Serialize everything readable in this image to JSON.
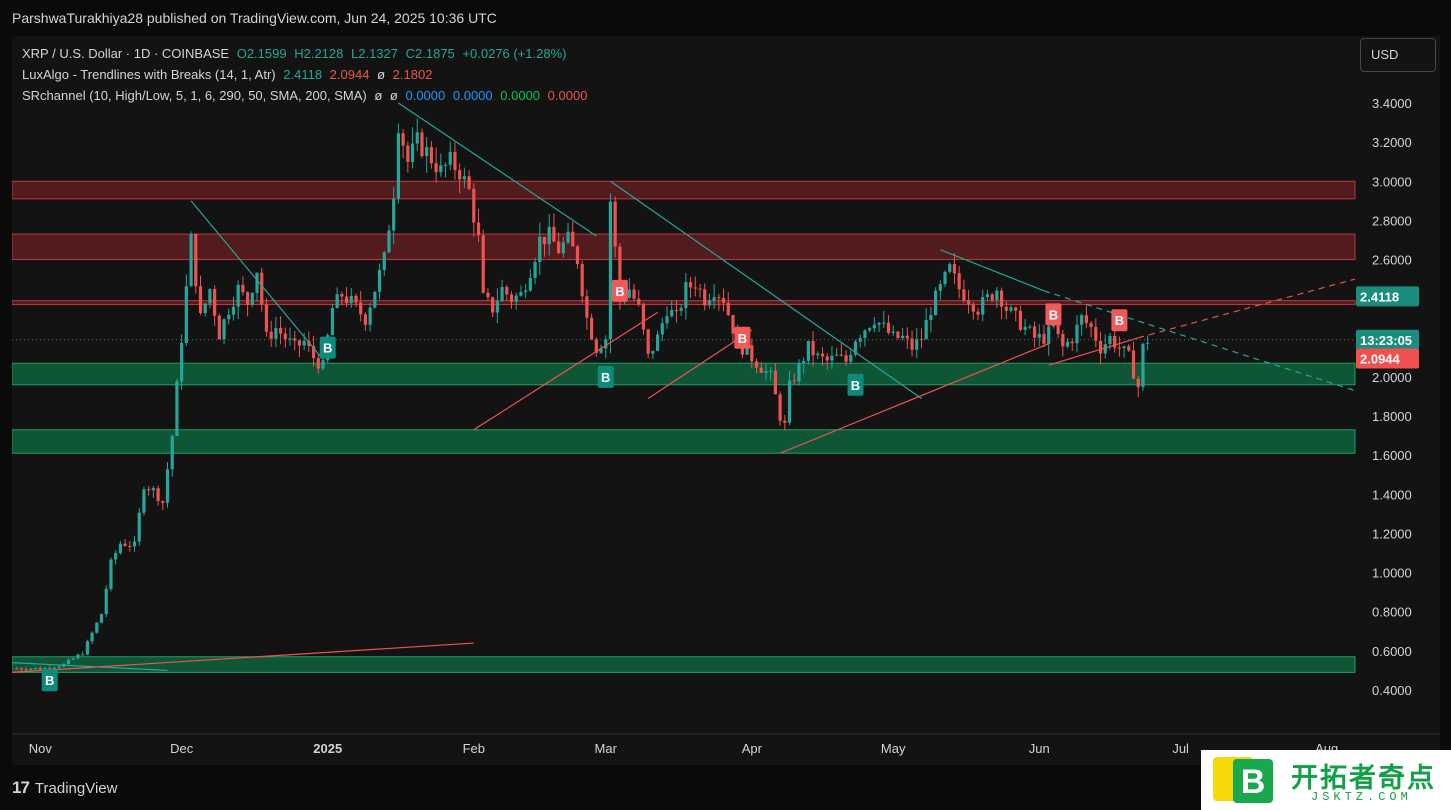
{
  "attribution": "ParshwaTurakhiya28 published on TradingView.com, Jun 24, 2025 10:36 UTC",
  "legend": {
    "symbol": "XRP / U.S. Dollar · 1D · COINBASE",
    "ohlc": {
      "open": "O2.1599",
      "high": "H2.2128",
      "low": "L2.1327",
      "close": "C2.1875",
      "change": "+0.0276 (+1.28%)"
    },
    "luxalgo": {
      "name": "LuxAlgo - Trendlines with Breaks (14, 1, Atr)",
      "v1": "2.4118",
      "v2": "2.0944",
      "v3": "ø",
      "v4": "2.1802"
    },
    "srchannel": {
      "name": "SRchannel (10, High/Low, 5, 1, 6, 290, 50, SMA, 200, SMA)",
      "v1": "ø",
      "v2": "ø",
      "v3": "0.0000",
      "v4": "0.0000",
      "v5": "0.0000",
      "v6": "0.0000"
    }
  },
  "currency": "USD",
  "footer": {
    "brand": "TradingView",
    "logo_glyph": "17"
  },
  "watermark": {
    "text": "开拓者奇点",
    "sub": "JSKTZ.COM",
    "logo_letter": "B"
  },
  "colors": {
    "bull": "#26a69a",
    "bear": "#ef5350",
    "resistance": "#5e1f22",
    "support": "#0f5e3c",
    "trendline_down": "#26a69a",
    "trendline_up": "#ef5350",
    "bg": "#131313"
  },
  "chart_data": {
    "type": "candlestick",
    "title": "XRP / U.S. Dollar · 1D · COINBASE",
    "ylim": [
      0.3,
      3.5
    ],
    "y_ticks": [
      "3.4000",
      "3.2000",
      "3.0000",
      "2.8000",
      "2.6000",
      "2.4000",
      "2.2000",
      "2.0000",
      "1.8000",
      "1.6000",
      "1.4000",
      "1.2000",
      "1.0000",
      "0.8000",
      "0.6000",
      "0.4000"
    ],
    "x_ticks": [
      {
        "label": "Nov",
        "date": "2024-11-01"
      },
      {
        "label": "Dec",
        "date": "2024-12-01"
      },
      {
        "label": "2025",
        "date": "2025-01-01"
      },
      {
        "label": "Feb",
        "date": "2025-02-01"
      },
      {
        "label": "Mar",
        "date": "2025-03-01"
      },
      {
        "label": "Apr",
        "date": "2025-04-01"
      },
      {
        "label": "May",
        "date": "2025-05-01"
      },
      {
        "label": "Jun",
        "date": "2025-06-01"
      },
      {
        "label": "Jul",
        "date": "2025-07-01"
      },
      {
        "label": "Aug",
        "date": "2025-08-01"
      }
    ],
    "x_range": [
      "2024-10-26",
      "2025-08-07"
    ],
    "price_path": [
      [
        "2024-10-26",
        0.51
      ],
      [
        "2024-11-02",
        0.51
      ],
      [
        "2024-11-06",
        0.53
      ],
      [
        "2024-11-10",
        0.59
      ],
      [
        "2024-11-12",
        0.69
      ],
      [
        "2024-11-14",
        0.79
      ],
      [
        "2024-11-16",
        1.05
      ],
      [
        "2024-11-18",
        1.15
      ],
      [
        "2024-11-21",
        1.14
      ],
      [
        "2024-11-23",
        1.45
      ],
      [
        "2024-11-25",
        1.42
      ],
      [
        "2024-11-27",
        1.36
      ],
      [
        "2024-11-29",
        1.7
      ],
      [
        "2024-12-01",
        2.2
      ],
      [
        "2024-12-03",
        2.7
      ],
      [
        "2024-12-05",
        2.3
      ],
      [
        "2024-12-07",
        2.45
      ],
      [
        "2024-12-09",
        2.22
      ],
      [
        "2024-12-11",
        2.35
      ],
      [
        "2024-12-13",
        2.45
      ],
      [
        "2024-12-15",
        2.38
      ],
      [
        "2024-12-17",
        2.55
      ],
      [
        "2024-12-19",
        2.2
      ],
      [
        "2024-12-21",
        2.25
      ],
      [
        "2024-12-23",
        2.2
      ],
      [
        "2024-12-25",
        2.15
      ],
      [
        "2024-12-27",
        2.18
      ],
      [
        "2024-12-29",
        2.1
      ],
      [
        "2024-12-31",
        2.05
      ],
      [
        "2025-01-02",
        2.35
      ],
      [
        "2025-01-04",
        2.42
      ],
      [
        "2025-01-06",
        2.38
      ],
      [
        "2025-01-09",
        2.3
      ],
      [
        "2025-01-11",
        2.45
      ],
      [
        "2025-01-13",
        2.6
      ],
      [
        "2025-01-15",
        2.95
      ],
      [
        "2025-01-16",
        3.3
      ],
      [
        "2025-01-18",
        3.1
      ],
      [
        "2025-01-20",
        3.2
      ],
      [
        "2025-01-22",
        3.15
      ],
      [
        "2025-01-25",
        3.05
      ],
      [
        "2025-01-27",
        3.1
      ],
      [
        "2025-01-29",
        3.05
      ],
      [
        "2025-01-31",
        2.95
      ],
      [
        "2025-02-02",
        2.7
      ],
      [
        "2025-02-03",
        2.4
      ],
      [
        "2025-02-05",
        2.35
      ],
      [
        "2025-02-07",
        2.45
      ],
      [
        "2025-02-09",
        2.4
      ],
      [
        "2025-02-11",
        2.42
      ],
      [
        "2025-02-13",
        2.55
      ],
      [
        "2025-02-15",
        2.7
      ],
      [
        "2025-02-17",
        2.72
      ],
      [
        "2025-02-19",
        2.65
      ],
      [
        "2025-02-21",
        2.7
      ],
      [
        "2025-02-23",
        2.6
      ],
      [
        "2025-02-25",
        2.3
      ],
      [
        "2025-02-27",
        2.15
      ],
      [
        "2025-03-01",
        2.2
      ],
      [
        "2025-03-02",
        2.9
      ],
      [
        "2025-03-04",
        2.4
      ],
      [
        "2025-03-06",
        2.45
      ],
      [
        "2025-03-08",
        2.35
      ],
      [
        "2025-03-10",
        2.1
      ],
      [
        "2025-03-12",
        2.2
      ],
      [
        "2025-03-14",
        2.35
      ],
      [
        "2025-03-16",
        2.3
      ],
      [
        "2025-03-18",
        2.45
      ],
      [
        "2025-03-20",
        2.48
      ],
      [
        "2025-03-22",
        2.4
      ],
      [
        "2025-03-24",
        2.45
      ],
      [
        "2025-03-26",
        2.4
      ],
      [
        "2025-03-28",
        2.25
      ],
      [
        "2025-03-30",
        2.15
      ],
      [
        "2025-04-01",
        2.1
      ],
      [
        "2025-04-03",
        2.05
      ],
      [
        "2025-04-05",
        2.0
      ],
      [
        "2025-04-07",
        1.8
      ],
      [
        "2025-04-08",
        1.75
      ],
      [
        "2025-04-09",
        1.95
      ],
      [
        "2025-04-11",
        2.05
      ],
      [
        "2025-04-13",
        2.15
      ],
      [
        "2025-04-15",
        2.1
      ],
      [
        "2025-04-17",
        2.08
      ],
      [
        "2025-04-19",
        2.1
      ],
      [
        "2025-04-21",
        2.08
      ],
      [
        "2025-04-23",
        2.2
      ],
      [
        "2025-04-25",
        2.25
      ],
      [
        "2025-04-27",
        2.3
      ],
      [
        "2025-04-29",
        2.25
      ],
      [
        "2025-05-01",
        2.2
      ],
      [
        "2025-05-03",
        2.2
      ],
      [
        "2025-05-05",
        2.15
      ],
      [
        "2025-05-07",
        2.2
      ],
      [
        "2025-05-09",
        2.35
      ],
      [
        "2025-05-11",
        2.45
      ],
      [
        "2025-05-13",
        2.55
      ],
      [
        "2025-05-15",
        2.45
      ],
      [
        "2025-05-17",
        2.4
      ],
      [
        "2025-05-19",
        2.35
      ],
      [
        "2025-05-21",
        2.4
      ],
      [
        "2025-05-23",
        2.45
      ],
      [
        "2025-05-25",
        2.35
      ],
      [
        "2025-05-27",
        2.3
      ],
      [
        "2025-05-29",
        2.25
      ],
      [
        "2025-05-31",
        2.2
      ],
      [
        "2025-06-02",
        2.2
      ],
      [
        "2025-06-04",
        2.25
      ],
      [
        "2025-06-06",
        2.15
      ],
      [
        "2025-06-08",
        2.2
      ],
      [
        "2025-06-10",
        2.3
      ],
      [
        "2025-06-12",
        2.25
      ],
      [
        "2025-06-14",
        2.15
      ],
      [
        "2025-06-16",
        2.2
      ],
      [
        "2025-06-18",
        2.15
      ],
      [
        "2025-06-20",
        2.1
      ],
      [
        "2025-06-22",
        1.95
      ],
      [
        "2025-06-23",
        2.15
      ],
      [
        "2025-06-24",
        2.19
      ]
    ],
    "sr_zones": [
      {
        "kind": "resistance",
        "low": 2.91,
        "high": 3.0
      },
      {
        "kind": "resistance",
        "low": 2.6,
        "high": 2.73
      },
      {
        "kind": "resistance",
        "low": 2.37,
        "high": 2.39
      },
      {
        "kind": "support",
        "low": 1.96,
        "high": 2.07
      },
      {
        "kind": "support",
        "low": 1.61,
        "high": 1.73
      },
      {
        "kind": "support",
        "low": 0.49,
        "high": 0.57
      }
    ],
    "trendlines": [
      {
        "kind": "down",
        "from": [
          "2024-12-03",
          2.9
        ],
        "to": [
          "2024-12-31",
          2.09
        ]
      },
      {
        "kind": "down",
        "from": [
          "2025-01-16",
          3.4
        ],
        "to": [
          "2025-02-27",
          2.72
        ]
      },
      {
        "kind": "down",
        "from": [
          "2025-03-02",
          3.0
        ],
        "to": [
          "2025-05-07",
          1.89
        ]
      },
      {
        "kind": "down",
        "from": [
          "2025-05-11",
          2.65
        ],
        "to": [
          "2025-06-02",
          2.44
        ]
      },
      {
        "kind": "down",
        "from": [
          "2025-06-02",
          2.44
        ],
        "to": [
          "2025-08-07",
          1.93
        ],
        "dashed": true
      },
      {
        "kind": "down",
        "from": [
          "2024-10-26",
          0.54
        ],
        "to": [
          "2024-11-28",
          0.5
        ]
      },
      {
        "kind": "up",
        "from": [
          "2024-10-26",
          0.49
        ],
        "to": [
          "2025-02-01",
          0.64
        ]
      },
      {
        "kind": "up",
        "from": [
          "2025-02-01",
          1.73
        ],
        "to": [
          "2025-03-12",
          2.33
        ]
      },
      {
        "kind": "up",
        "from": [
          "2025-03-10",
          1.89
        ],
        "to": [
          "2025-04-01",
          2.24
        ]
      },
      {
        "kind": "up",
        "from": [
          "2025-04-07",
          1.61
        ],
        "to": [
          "2025-06-03",
          2.17
        ]
      },
      {
        "kind": "up",
        "from": [
          "2025-06-03",
          2.06
        ],
        "to": [
          "2025-06-22",
          2.2
        ]
      },
      {
        "kind": "up",
        "from": [
          "2025-06-22",
          2.2
        ],
        "to": [
          "2025-08-07",
          2.5
        ],
        "dashed": true
      }
    ],
    "break_markers": [
      {
        "label": "B",
        "kind": "bull",
        "date": "2024-11-03",
        "price": 0.45
      },
      {
        "label": "B",
        "kind": "bull",
        "date": "2025-01-01",
        "price": 2.15
      },
      {
        "label": "B",
        "kind": "bull",
        "date": "2025-03-01",
        "price": 2.0
      },
      {
        "label": "B",
        "kind": "bear",
        "date": "2025-03-04",
        "price": 2.44
      },
      {
        "label": "B",
        "kind": "bear",
        "date": "2025-03-30",
        "price": 2.2
      },
      {
        "label": "B",
        "kind": "bull",
        "date": "2025-04-23",
        "price": 1.96
      },
      {
        "label": "B",
        "kind": "bear",
        "date": "2025-06-04",
        "price": 2.32
      },
      {
        "label": "B",
        "kind": "bear",
        "date": "2025-06-18",
        "price": 2.29
      }
    ],
    "price_labels": [
      {
        "text": "2.4118",
        "value": 2.4118,
        "kind": "bull"
      },
      {
        "text": "13:23:05",
        "value": 2.19,
        "kind": "bull"
      },
      {
        "text": "2.0944",
        "value": 2.0944,
        "kind": "bear"
      }
    ]
  }
}
